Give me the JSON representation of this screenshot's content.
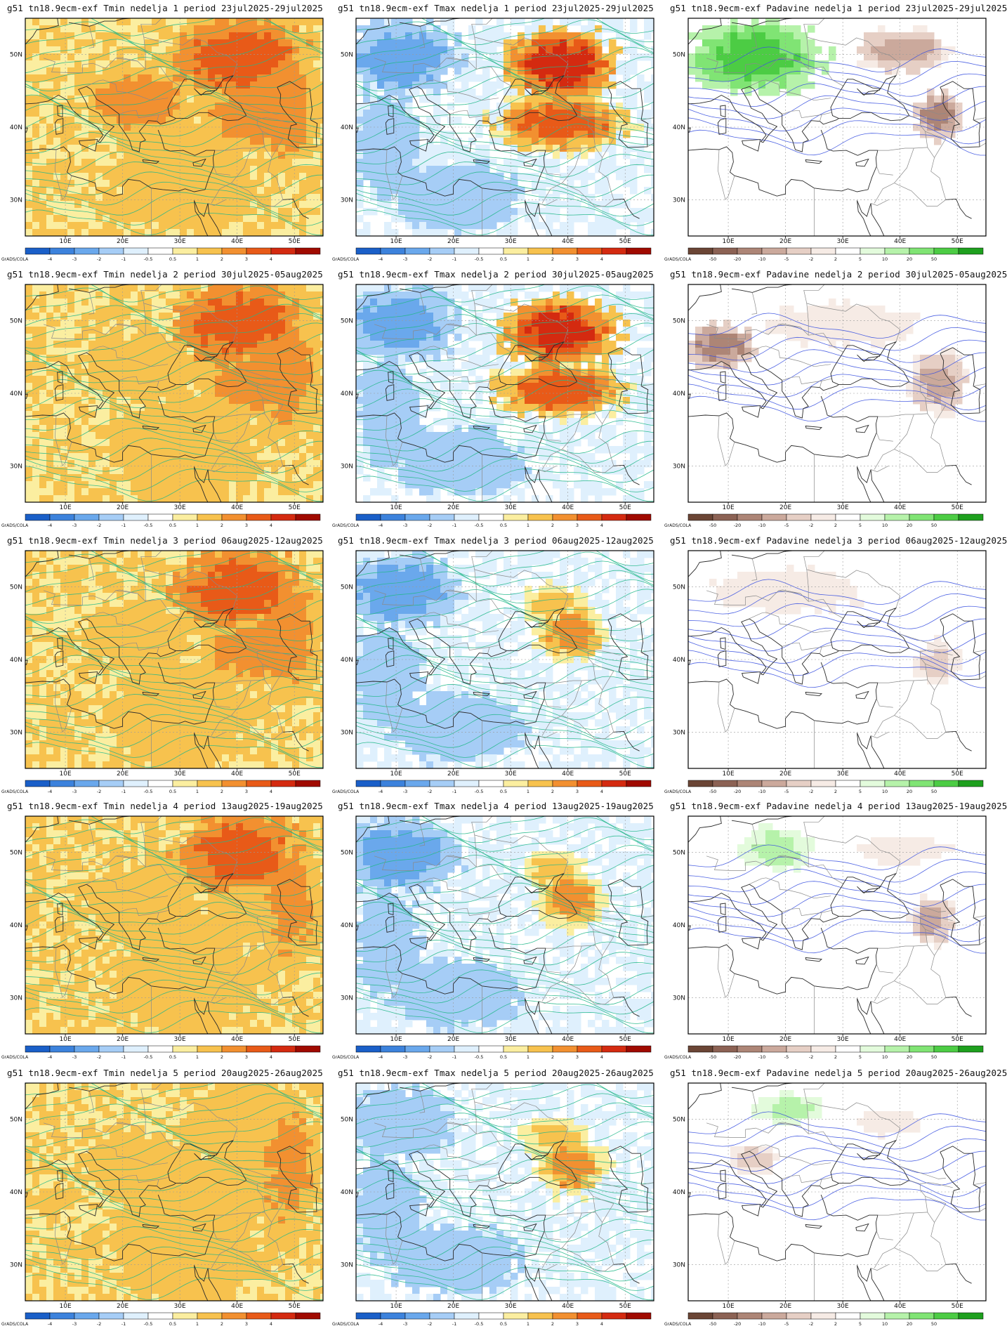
{
  "credit": "GrADS/COLA",
  "axes": {
    "lon_labels": [
      "10E",
      "20E",
      "30E",
      "40E",
      "50E"
    ],
    "lat_labels": [
      "30N",
      "40N",
      "50N"
    ]
  },
  "colorbars": {
    "temp": {
      "ticks": [
        "-4",
        "-3",
        "-2",
        "-1",
        "-0.5",
        "0.5",
        "1",
        "2",
        "3",
        "4"
      ],
      "colors": [
        "#1a5fc8",
        "#3c82dc",
        "#6aa8ec",
        "#a6cdf6",
        "#dff0fd",
        "#ffffff",
        "#fbeea0",
        "#f7c24e",
        "#f29030",
        "#e85a18",
        "#d42a10",
        "#a00a00"
      ]
    },
    "precip": {
      "ticks": [
        "-50",
        "-20",
        "-10",
        "-5",
        "-2",
        "2",
        "5",
        "10",
        "20",
        "50"
      ],
      "colors": [
        "#6b4535",
        "#8c6254",
        "#ad8576",
        "#cba99c",
        "#e6cfc5",
        "#f6ebe5",
        "#ffffff",
        "#e3fbdc",
        "#b6f2aa",
        "#80e474",
        "#4ccc44",
        "#1ea01e"
      ]
    }
  },
  "rows": [
    {
      "week": "1",
      "tmin_title": "g51 tn18.9ecm-exf Tmin nedelja 1 period 23jul2025-29jul2025",
      "tmax_title": "g51 tn18.9ecm-exf Tmax nedelja 1 period 23jul2025-29jul2025",
      "prec_title": "g51 tn18.9ecm-exf Padavine nedelja 1 period 23jul2025-29jul2025"
    },
    {
      "week": "2",
      "tmin_title": "g51 tn18.9ecm-exf Tmin nedelja 2 period 30jul2025-05aug2025",
      "tmax_title": "g51 tn18.9ecm-exf Tmax nedelja 2 period 30jul2025-05aug2025",
      "prec_title": "g51 tn18.9ecm-exf Padavine nedelja 2 period 30jul2025-05aug2025"
    },
    {
      "week": "3",
      "tmin_title": "g51 tn18.9ecm-exf Tmin nedelja 3 period 06aug2025-12aug2025",
      "tmax_title": "g51 tn18.9ecm-exf Tmax nedelja 3 period 06aug2025-12aug2025",
      "prec_title": "g51 tn18.9ecm-exf Padavine nedelja 3 period 06aug2025-12aug2025"
    },
    {
      "week": "4",
      "tmin_title": "g51 tn18.9ecm-exf Tmin nedelja 4 period 13aug2025-19aug2025",
      "tmax_title": "g51 tn18.9ecm-exf Tmax nedelja 4 period 13aug2025-19aug2025",
      "prec_title": "g51 tn18.9ecm-exf Padavine nedelja 4 period 13aug2025-19aug2025"
    },
    {
      "week": "5",
      "tmin_title": "g51 tn18.9ecm-exf Tmin nedelja 5 period 20aug2025-26aug2025",
      "tmax_title": "g51 tn18.9ecm-exf Tmax nedelja 5 period 20aug2025-26aug2025",
      "prec_title": "g51 tn18.9ecm-exf Padavine nedelja 5 period 20aug2025-26aug2025"
    }
  ]
}
